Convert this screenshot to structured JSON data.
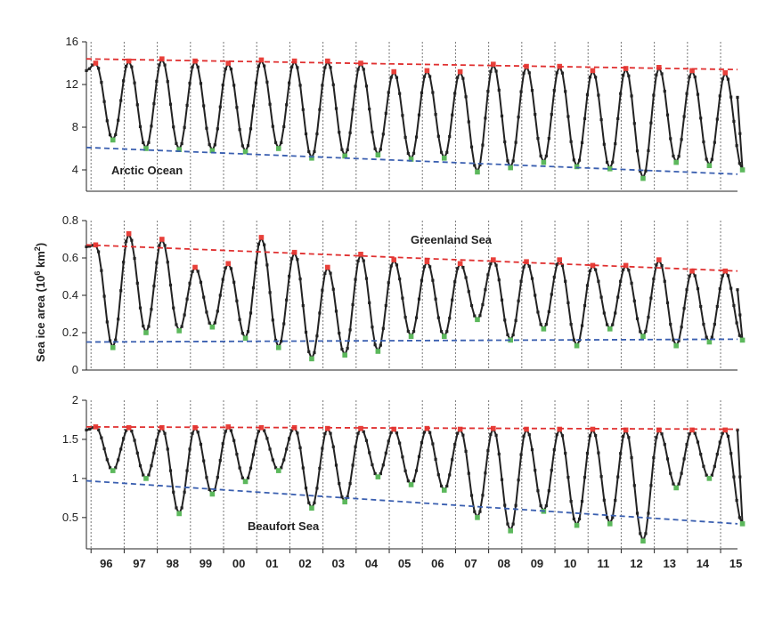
{
  "chart_data": {
    "type": "line",
    "ylabel": "Sea ice area (10",
    "ylabel_sup": "6",
    "ylabel_unit": " km",
    "ylabel_sup2": "2",
    "ylabel_close": ")",
    "x_tick_labels": [
      "96",
      "97",
      "98",
      "99",
      "00",
      "01",
      "02",
      "03",
      "04",
      "05",
      "06",
      "07",
      "08",
      "09",
      "10",
      "11",
      "12",
      "13",
      "14",
      "15"
    ],
    "xlim": [
      1995.9,
      2015.55
    ],
    "colors": {
      "line": "#222222",
      "max_marker": "#e8403a",
      "min_marker": "#5cb85c",
      "max_trend": "#e03030",
      "min_trend": "#3a5fb0",
      "grid": "#777777"
    },
    "panels": [
      {
        "name": "Arctic Ocean",
        "ylim": [
          2,
          16
        ],
        "yticks": [
          4,
          8,
          12,
          16
        ],
        "max_values": [
          14.0,
          14.2,
          14.4,
          14.2,
          14.0,
          14.3,
          14.2,
          14.2,
          14.0,
          13.2,
          13.3,
          13.2,
          13.9,
          13.7,
          13.7,
          13.3,
          13.5,
          13.6,
          13.3,
          13.1
        ],
        "min_values": [
          6.8,
          6.0,
          5.9,
          5.8,
          5.7,
          6.0,
          5.1,
          5.3,
          5.4,
          5.0,
          5.1,
          3.8,
          4.2,
          4.7,
          4.3,
          4.1,
          3.2,
          4.7,
          4.4,
          4.0
        ],
        "start_value": 13.3,
        "end_value": 10.8,
        "max_trend": [
          14.4,
          13.4
        ],
        "min_trend": [
          6.1,
          3.6
        ]
      },
      {
        "name": "Greenland Sea",
        "ylim": [
          0,
          0.8
        ],
        "yticks": [
          0,
          0.2,
          0.4,
          0.6,
          0.8
        ],
        "max_values": [
          0.67,
          0.73,
          0.7,
          0.55,
          0.57,
          0.71,
          0.63,
          0.55,
          0.62,
          0.59,
          0.58,
          0.57,
          0.59,
          0.58,
          0.59,
          0.56,
          0.56,
          0.59,
          0.53,
          0.53
        ],
        "min_values": [
          0.12,
          0.2,
          0.21,
          0.23,
          0.17,
          0.12,
          0.06,
          0.08,
          0.1,
          0.18,
          0.18,
          0.27,
          0.16,
          0.22,
          0.13,
          0.22,
          0.18,
          0.13,
          0.15,
          0.16
        ],
        "start_value": 0.66,
        "end_value": 0.43,
        "max_trend": [
          0.67,
          0.53
        ],
        "min_trend": [
          0.15,
          0.165
        ]
      },
      {
        "name": "Beaufort Sea",
        "ylim": [
          0.1,
          2
        ],
        "yticks": [
          0.5,
          1,
          1.5,
          2
        ],
        "max_values": [
          1.66,
          1.65,
          1.65,
          1.65,
          1.66,
          1.65,
          1.65,
          1.64,
          1.64,
          1.63,
          1.64,
          1.63,
          1.64,
          1.63,
          1.63,
          1.63,
          1.62,
          1.62,
          1.62,
          1.62
        ],
        "min_values": [
          1.1,
          1.0,
          0.55,
          0.8,
          0.96,
          1.1,
          0.62,
          0.7,
          1.02,
          0.92,
          0.85,
          0.5,
          0.33,
          0.58,
          0.4,
          0.42,
          0.2,
          0.88,
          1.0,
          0.42
        ],
        "start_value": 1.62,
        "end_value": 1.62,
        "max_trend": [
          1.66,
          1.63
        ],
        "min_trend": [
          0.97,
          0.42
        ]
      }
    ]
  }
}
